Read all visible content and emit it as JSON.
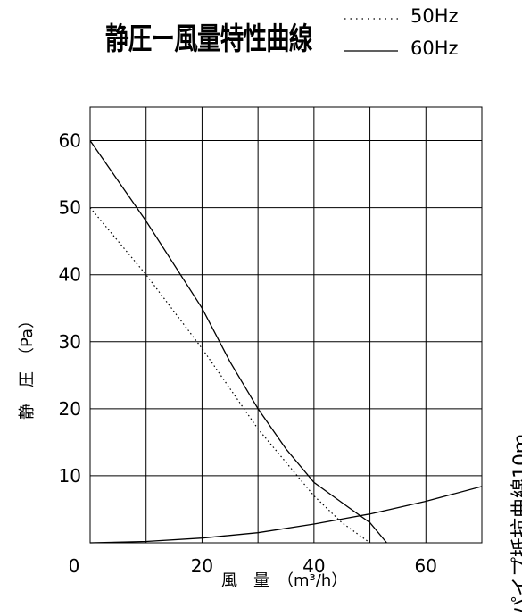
{
  "chart_data": {
    "type": "line",
    "title": "静圧ー風量特性曲線",
    "xlabel": "風　量　（m³/h）",
    "ylabel": "静　圧　（Pa）",
    "side_label": "パイプ抵抗曲線10ｍ",
    "xlim": [
      0,
      70
    ],
    "ylim": [
      0,
      65
    ],
    "xticks": [
      0,
      20,
      40,
      60
    ],
    "yticks": [
      10,
      20,
      30,
      40,
      50,
      60
    ],
    "grid": true,
    "legend_position": "top-right",
    "series": [
      {
        "name": "50Hz",
        "style": "dotted",
        "x": [
          0,
          10,
          20,
          30,
          40,
          45,
          50
        ],
        "y": [
          50,
          40,
          29,
          17,
          7,
          3,
          0
        ]
      },
      {
        "name": "60Hz",
        "style": "solid",
        "x": [
          0,
          10,
          20,
          25,
          30,
          35,
          40,
          45,
          50,
          53
        ],
        "y": [
          60,
          48,
          35,
          27,
          20,
          14,
          9,
          6,
          3,
          0
        ]
      },
      {
        "name": "パイプ抵抗曲線10ｍ",
        "style": "solid",
        "x": [
          0,
          10,
          20,
          30,
          40,
          50,
          60,
          70
        ],
        "y": [
          0,
          0.2,
          0.7,
          1.5,
          2.8,
          4.3,
          6.2,
          8.4
        ]
      }
    ]
  }
}
